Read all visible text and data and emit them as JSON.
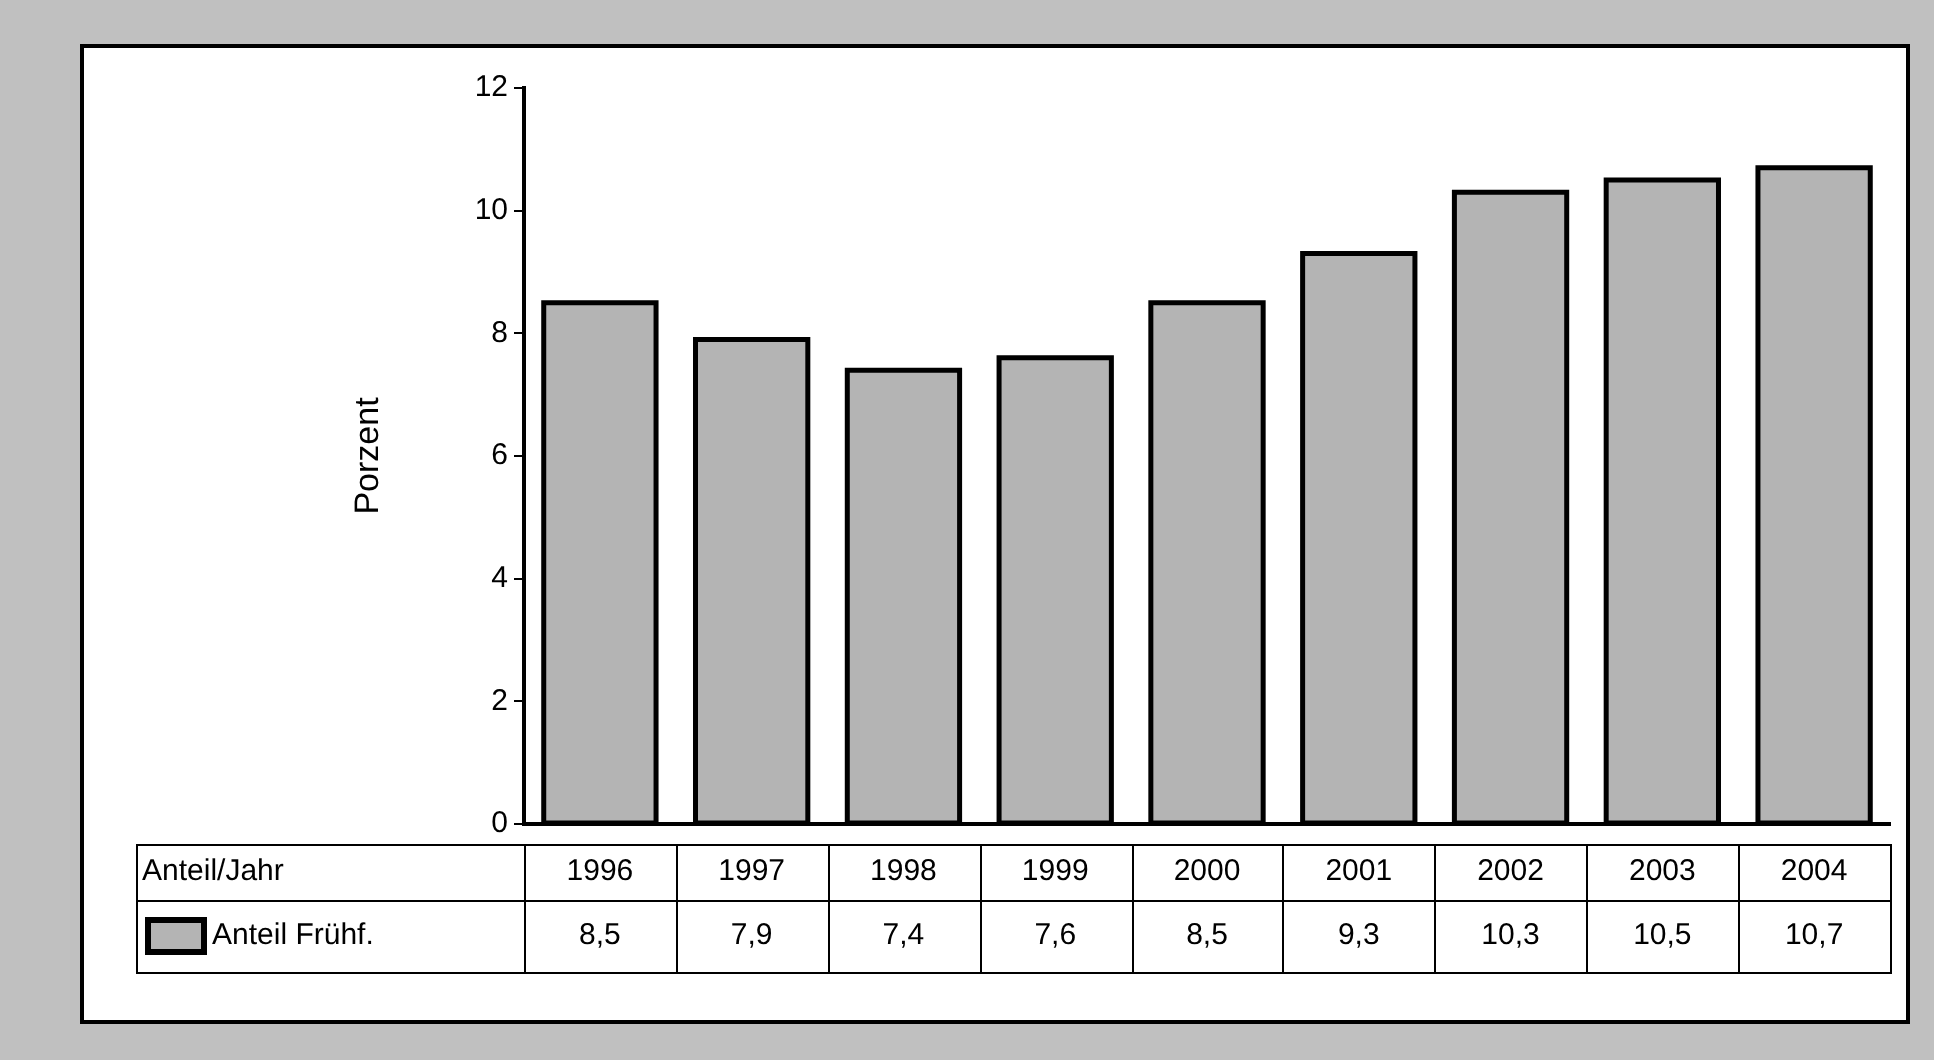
{
  "chart_data": {
    "type": "bar",
    "ylabel": "Porzent",
    "annotations": [
      "Anteil/Jahr"
    ],
    "categories": [
      "1996",
      "1997",
      "1998",
      "1999",
      "2000",
      "2001",
      "2002",
      "2003",
      "2004"
    ],
    "series": [
      {
        "name": "Anteil Frühf.",
        "color": "#b4b4b4",
        "values": [
          8.5,
          7.9,
          7.4,
          7.6,
          8.5,
          9.3,
          10.3,
          10.5,
          10.7
        ],
        "value_labels": [
          "8,5",
          "7,9",
          "7,4",
          "7,6",
          "8,5",
          "9,3",
          "10,3",
          "10,5",
          "10,7"
        ]
      }
    ],
    "ylim": [
      0,
      12
    ],
    "yticks": [
      0,
      2,
      4,
      6,
      8,
      10,
      12
    ],
    "grid": false
  }
}
